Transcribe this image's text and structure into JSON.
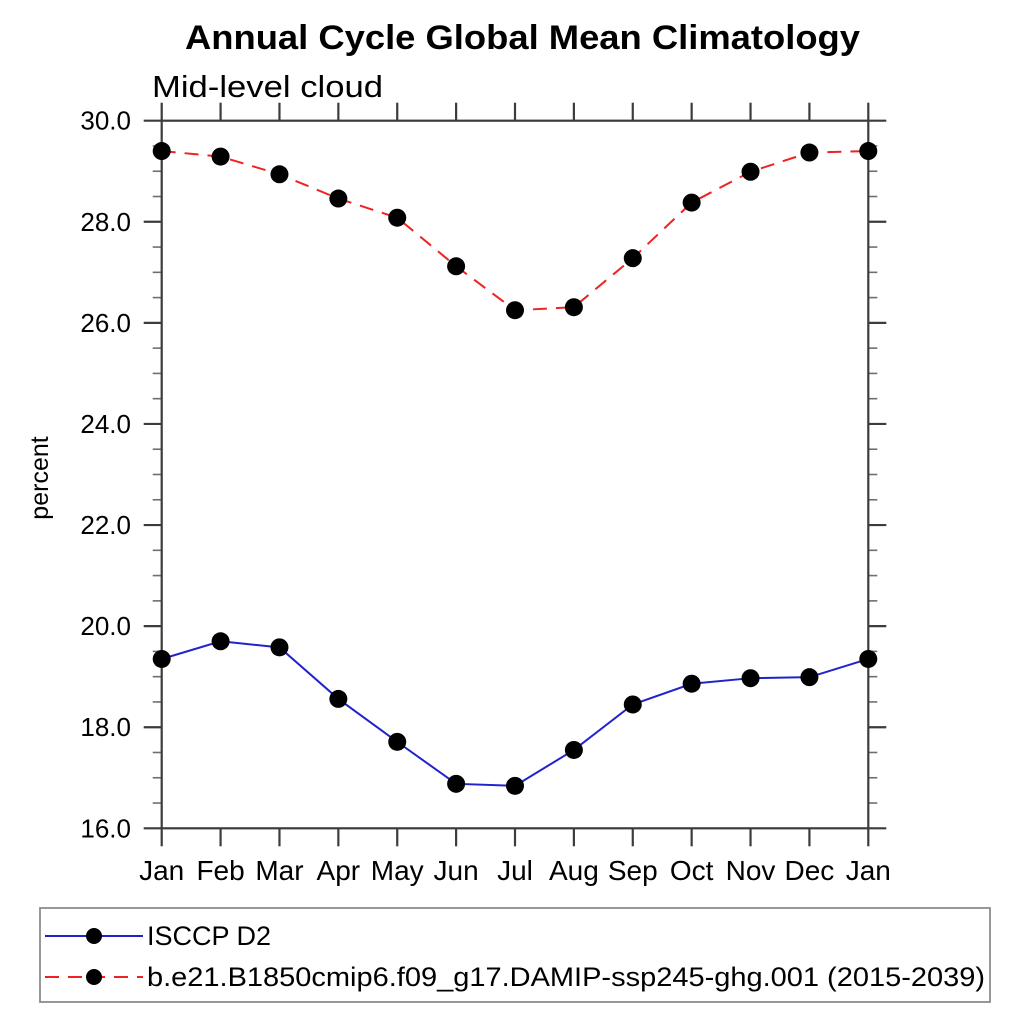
{
  "title": "Annual Cycle Global Mean Climatology",
  "subtitle": "Mid-level cloud",
  "chart_data": {
    "type": "line",
    "categories": [
      "Jan",
      "Feb",
      "Mar",
      "Apr",
      "May",
      "Jun",
      "Jul",
      "Aug",
      "Sep",
      "Oct",
      "Nov",
      "Dec",
      "Jan"
    ],
    "series": [
      {
        "name": "ISCCP D2",
        "color": "#2222cc",
        "line_style": "solid",
        "marker": "filled-circle",
        "values": [
          19.35,
          19.7,
          19.58,
          18.56,
          17.71,
          16.88,
          16.84,
          17.55,
          18.45,
          18.86,
          18.97,
          18.99,
          19.35
        ]
      },
      {
        "name": "b.e21.B1850cmip6.f09_g17.DAMIP-ssp245-ghg.001 (2015-2039)",
        "color": "#ee2222",
        "line_style": "dashed",
        "marker": "filled-circle",
        "values": [
          29.4,
          29.29,
          28.94,
          28.46,
          28.08,
          27.12,
          26.25,
          26.31,
          27.28,
          28.38,
          28.99,
          29.37,
          29.4
        ]
      }
    ],
    "xlabel": "",
    "ylabel": "percent",
    "ylim": [
      16,
      30
    ],
    "y_major_tick_step": 2,
    "y_minor_tick_step": 0.5,
    "y_tick_labels": [
      "16.0",
      "18.0",
      "20.0",
      "22.0",
      "24.0",
      "26.0",
      "28.0",
      "30.0"
    ],
    "grid": false,
    "legend_position": "bottom-left-box",
    "marker_color": "#000000"
  }
}
